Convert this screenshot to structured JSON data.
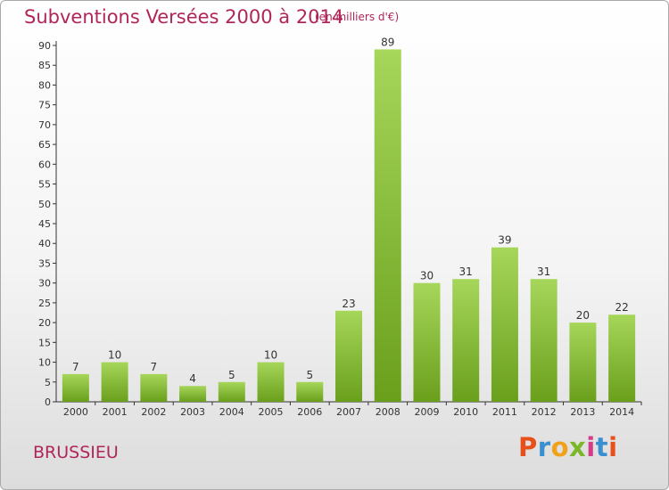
{
  "title": "Subventions Versées 2000 à 2014",
  "unit_note": "(en milliers d'€)",
  "commune": "BRUSSIEU",
  "logo": {
    "letters": [
      "P",
      "r",
      "o",
      "x",
      "i",
      "t",
      "i"
    ],
    "colors": [
      "#e8501b",
      "#3a8fd0",
      "#f0a21b",
      "#7ab829",
      "#d63b8a",
      "#3a8fd0",
      "#e8501b"
    ]
  },
  "colors": {
    "bar_top": "#a6d65a",
    "bar_bottom": "#6a9f1c",
    "title": "#b0255a",
    "axis": "#333333"
  },
  "chart_data": {
    "type": "bar",
    "title": "Subventions Versées 2000 à 2014",
    "categories": [
      "2000",
      "2001",
      "2002",
      "2003",
      "2004",
      "2005",
      "2006",
      "2007",
      "2008",
      "2009",
      "2010",
      "2011",
      "2012",
      "2013",
      "2014"
    ],
    "values": [
      7,
      10,
      7,
      4,
      5,
      10,
      5,
      23,
      89,
      30,
      31,
      39,
      31,
      20,
      22
    ],
    "ylim": [
      0,
      90
    ],
    "yticks": [
      0,
      5,
      10,
      15,
      20,
      25,
      30,
      35,
      40,
      45,
      50,
      55,
      60,
      65,
      70,
      75,
      80,
      85,
      90
    ],
    "grid": false,
    "xlabel": "",
    "ylabel": ""
  }
}
